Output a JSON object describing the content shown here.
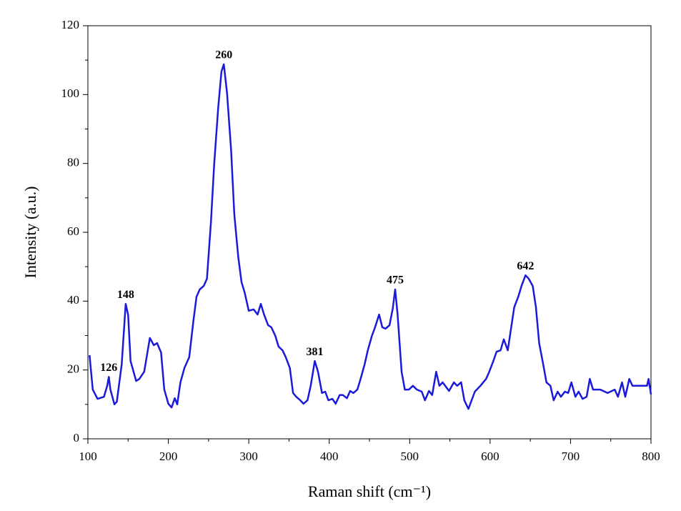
{
  "chart_data": {
    "type": "line",
    "xlabel": "Raman shift (cm⁻¹)",
    "ylabel": "Intensity (a.u.)",
    "xlim": [
      100,
      800
    ],
    "ylim": [
      0,
      120
    ],
    "xticks": [
      100,
      200,
      300,
      400,
      500,
      600,
      700,
      800
    ],
    "yticks": [
      0,
      20,
      40,
      60,
      80,
      100,
      120
    ],
    "xminorticks": [
      150,
      250,
      350,
      450,
      550,
      650,
      750
    ],
    "yminorticks": [
      10,
      30,
      50,
      70,
      90,
      110
    ],
    "series": [
      {
        "color": "#1a1adb",
        "x": [
          102,
          106,
          112,
          120,
          124,
          126,
          128,
          133,
          136,
          142,
          147,
          150,
          153,
          160,
          164,
          170,
          177,
          182,
          186,
          191,
          195,
          200,
          204,
          208,
          211,
          215,
          220,
          226,
          231,
          235,
          239,
          244,
          248,
          253,
          257,
          262,
          266,
          269,
          273,
          278,
          282,
          287,
          291,
          295,
          300,
          306,
          311,
          315,
          319,
          324,
          328,
          333,
          337,
          342,
          346,
          351,
          355,
          359,
          364,
          368,
          373,
          377,
          382,
          386,
          391,
          395,
          399,
          404,
          408,
          413,
          417,
          422,
          426,
          430,
          435,
          439,
          444,
          448,
          453,
          457,
          462,
          466,
          470,
          475,
          479,
          482,
          485,
          490,
          494,
          499,
          504,
          509,
          515,
          519,
          524,
          528,
          533,
          537,
          541,
          549,
          555,
          559,
          564,
          568,
          573,
          577,
          581,
          588,
          595,
          599,
          604,
          608,
          613,
          617,
          622,
          626,
          630,
          635,
          639,
          644,
          648,
          653,
          657,
          661,
          666,
          670,
          675,
          679,
          684,
          688,
          693,
          697,
          701,
          706,
          710,
          715,
          720,
          724,
          728,
          737,
          746,
          755,
          759,
          764,
          768,
          773,
          777,
          786,
          795,
          797,
          800
        ],
        "values": [
          24.3,
          14.3,
          11.6,
          12.2,
          15.4,
          18,
          14.3,
          10,
          10.8,
          21.6,
          39.2,
          36,
          22.6,
          16.8,
          17.4,
          19.5,
          29.3,
          27.2,
          27.8,
          25.1,
          14.3,
          10.2,
          9.1,
          11.8,
          10,
          16.4,
          20.6,
          23.7,
          34,
          41.3,
          43.4,
          44.4,
          46.5,
          63,
          79.7,
          96.3,
          106.7,
          108.8,
          100.5,
          83.9,
          65.2,
          52.7,
          45.5,
          42.4,
          37.2,
          37.6,
          36.1,
          39.2,
          36.1,
          33,
          32.4,
          29.9,
          26.8,
          25.7,
          23.7,
          20.6,
          13.3,
          12.2,
          11.2,
          10.2,
          11.2,
          15.4,
          22.6,
          19.5,
          13.3,
          13.7,
          11.2,
          11.6,
          10.2,
          12.7,
          12.7,
          11.8,
          13.9,
          13.3,
          14.3,
          17.4,
          21.6,
          25.7,
          29.9,
          32.4,
          36.1,
          32.4,
          32,
          33,
          37.8,
          43.4,
          36.1,
          19.5,
          14.3,
          14.3,
          15.4,
          14.3,
          13.7,
          11.2,
          13.9,
          12.7,
          19.5,
          15.4,
          16.4,
          13.9,
          16.4,
          15.4,
          16.4,
          11.2,
          8.7,
          11.2,
          13.7,
          15.4,
          17.4,
          19.5,
          22.6,
          25.3,
          25.7,
          28.9,
          25.7,
          32,
          38.2,
          41.3,
          44.4,
          47.5,
          46.5,
          44.4,
          38.2,
          27.8,
          21.6,
          16.4,
          15.4,
          11.2,
          13.7,
          12.2,
          13.7,
          13.3,
          16.4,
          12.2,
          13.7,
          11.6,
          12.2,
          17.4,
          14.3,
          14.3,
          13.3,
          14.3,
          12.2,
          16.4,
          12.2,
          17.4,
          15.4,
          15.4,
          15.4,
          17.4,
          12.9
        ]
      }
    ],
    "annotations": [
      {
        "text": "126",
        "x": 126,
        "y": 18
      },
      {
        "text": "148",
        "x": 147,
        "y": 39.2
      },
      {
        "text": "260",
        "x": 269,
        "y": 108.8
      },
      {
        "text": "381",
        "x": 382,
        "y": 22.6
      },
      {
        "text": "475",
        "x": 482,
        "y": 43.4
      },
      {
        "text": "642",
        "x": 644,
        "y": 47.5
      }
    ]
  }
}
